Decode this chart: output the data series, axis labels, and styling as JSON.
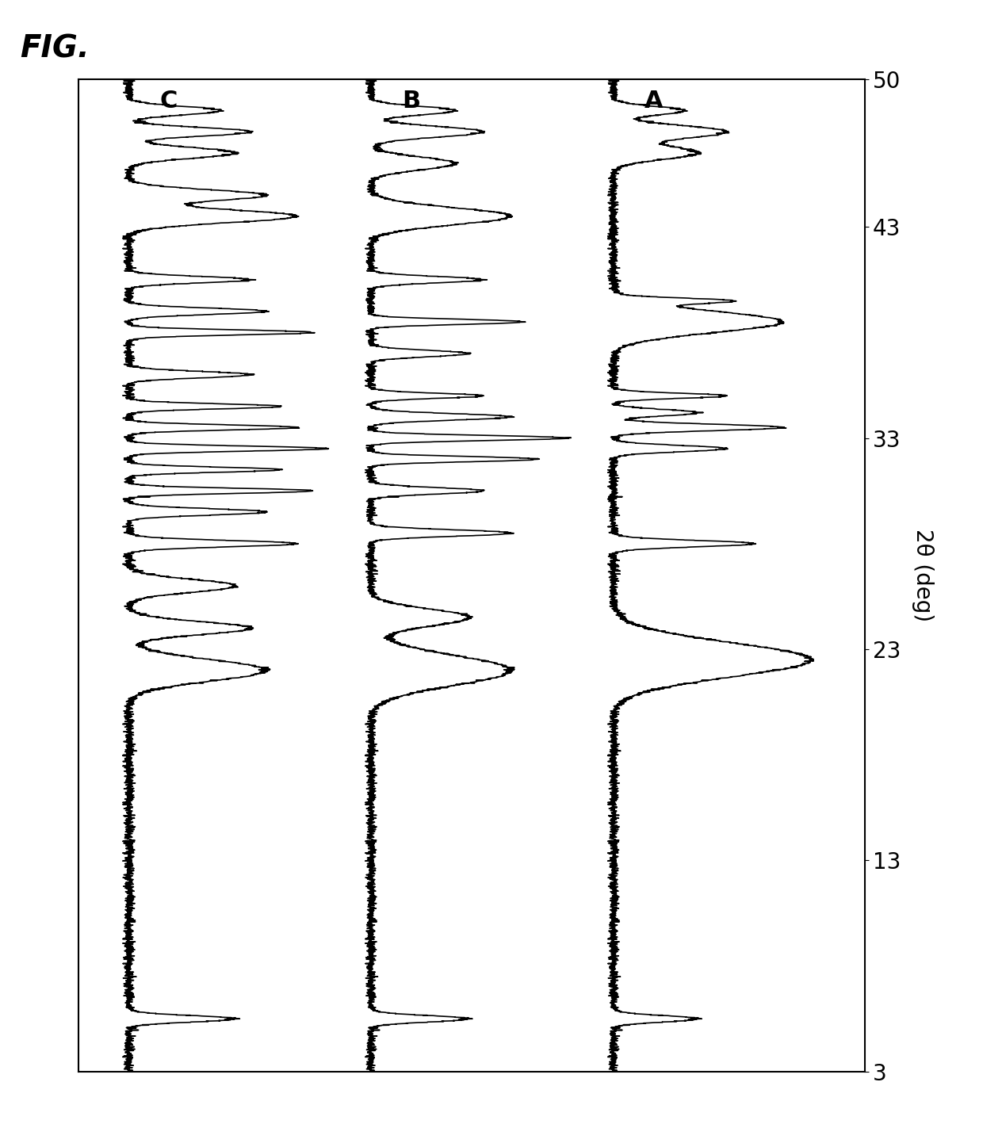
{
  "title": "FIG.",
  "xlabel": "2θ (deg)",
  "xmin": 3,
  "xmax": 50,
  "xticks": [
    3,
    13,
    23,
    33,
    43,
    50
  ],
  "curve_labels": [
    "A",
    "B",
    "C"
  ],
  "background_color": "#ffffff",
  "line_color": "#000000",
  "label_fontsize": 22,
  "axis_fontsize": 20,
  "title_fontsize": 28,
  "figsize": [
    12.4,
    14.23
  ],
  "dpi": 100
}
